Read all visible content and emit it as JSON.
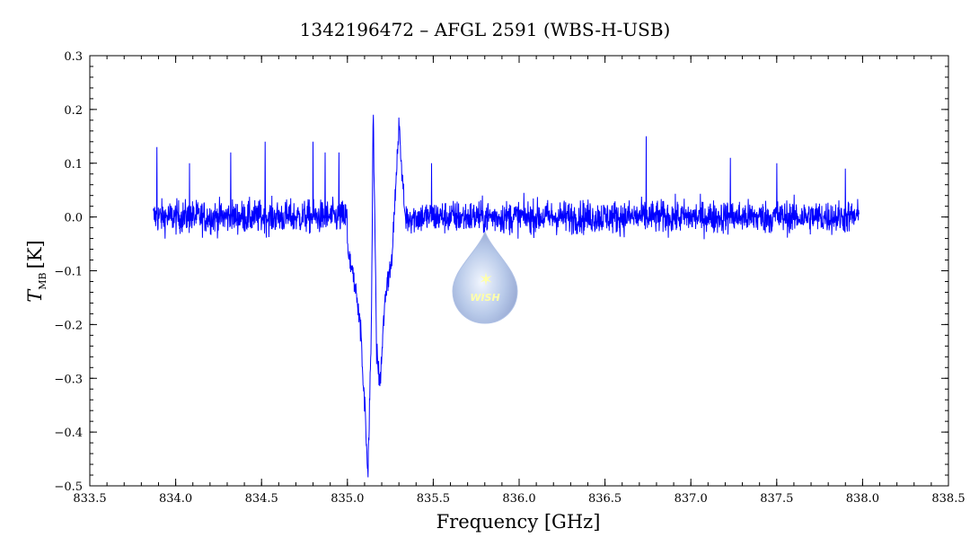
{
  "chart_data": {
    "type": "line",
    "title": "1342196472 – AFGL 2591 (WBS-H-USB)",
    "xlabel": "Frequency [GHz]",
    "ylabel_main": "T",
    "ylabel_sub": "MB",
    "ylabel_unit": "[K]",
    "xlim": [
      833.5,
      838.5
    ],
    "ylim": [
      -0.5,
      0.3
    ],
    "x_ticks": [
      833.5,
      834.0,
      834.5,
      835.0,
      835.5,
      836.0,
      836.5,
      837.0,
      837.5,
      838.0,
      838.5
    ],
    "x_tick_labels": [
      "833.5",
      "834.0",
      "834.5",
      "835.0",
      "835.5",
      "836.0",
      "836.5",
      "837.0",
      "837.5",
      "838.0",
      "838.5"
    ],
    "y_ticks": [
      -0.5,
      -0.4,
      -0.3,
      -0.2,
      -0.1,
      0.0,
      0.1,
      0.2,
      0.3
    ],
    "y_tick_labels": [
      "−0.5",
      "−0.4",
      "−0.3",
      "−0.2",
      "−0.1",
      "0.0",
      "0.1",
      "0.2",
      "0.3"
    ],
    "series": [
      {
        "color": "#0000ff",
        "x_range": [
          833.87,
          837.98
        ],
        "noise_rms": 0.022,
        "baseline": 0.0,
        "features": [
          {
            "x": 835.0,
            "y": -0.06
          },
          {
            "x": 835.05,
            "y": -0.14
          },
          {
            "x": 835.08,
            "y": -0.22
          },
          {
            "x": 835.1,
            "y": -0.35
          },
          {
            "x": 835.12,
            "y": -0.47
          },
          {
            "x": 835.14,
            "y": -0.2
          },
          {
            "x": 835.15,
            "y": 0.21
          },
          {
            "x": 835.17,
            "y": -0.25
          },
          {
            "x": 835.19,
            "y": -0.31
          },
          {
            "x": 835.22,
            "y": -0.15
          },
          {
            "x": 835.26,
            "y": -0.07
          },
          {
            "x": 835.3,
            "y": 0.17
          },
          {
            "x": 835.34,
            "y": -0.02
          }
        ],
        "spikes": [
          {
            "x": 833.89,
            "y": 0.13
          },
          {
            "x": 834.08,
            "y": 0.1
          },
          {
            "x": 834.32,
            "y": 0.12
          },
          {
            "x": 834.52,
            "y": 0.14
          },
          {
            "x": 834.8,
            "y": 0.14
          },
          {
            "x": 834.87,
            "y": 0.12
          },
          {
            "x": 834.95,
            "y": 0.12
          },
          {
            "x": 835.49,
            "y": 0.1
          },
          {
            "x": 836.74,
            "y": 0.15
          },
          {
            "x": 837.23,
            "y": 0.11
          },
          {
            "x": 837.5,
            "y": 0.1
          },
          {
            "x": 837.9,
            "y": 0.09
          }
        ]
      }
    ],
    "watermark_text": "WISH"
  }
}
